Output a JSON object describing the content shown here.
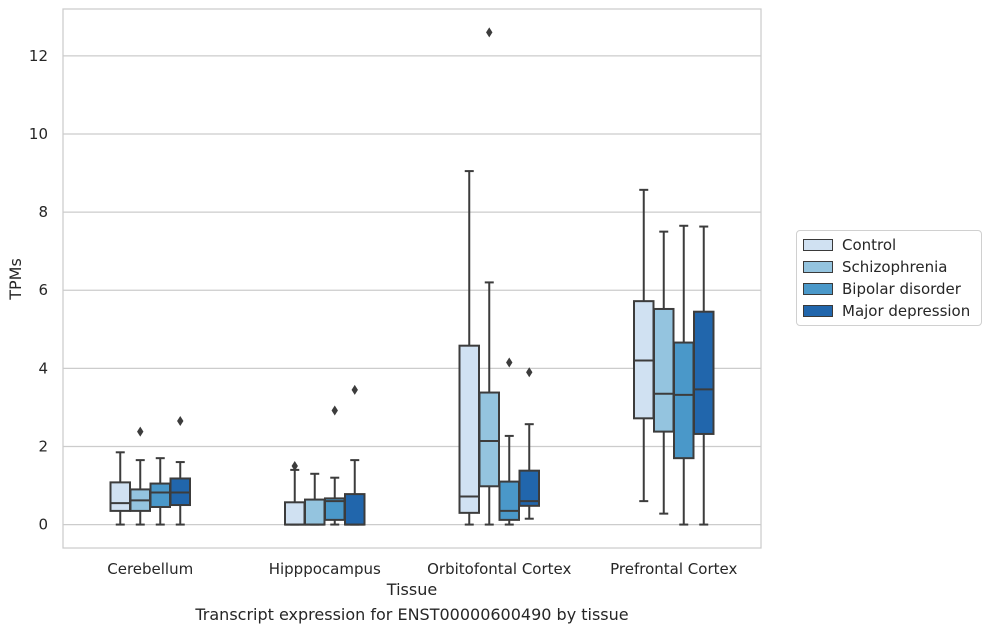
{
  "chart_data": {
    "type": "box",
    "title": "",
    "xlabel": "Tissue",
    "ylabel": "TPMs",
    "ylim": [
      -0.6,
      13.2
    ],
    "yticks": [
      0,
      2,
      4,
      6,
      8,
      10,
      12
    ],
    "grid": "horizontal",
    "legend_position": "right",
    "categories": [
      "Cerebellum",
      "Hipppocampus",
      "Orbitofontal Cortex",
      "Prefrontal Cortex"
    ],
    "series": [
      {
        "name": "Control",
        "color": "#d0e1f2",
        "boxes": [
          {
            "whislo": 0.0,
            "q1": 0.35,
            "med": 0.55,
            "q3": 1.08,
            "whishi": 1.85,
            "fliers": []
          },
          {
            "whislo": 0.0,
            "q1": 0.0,
            "med": 0.0,
            "q3": 0.57,
            "whishi": 1.4,
            "fliers": [
              1.5
            ]
          },
          {
            "whislo": 0.0,
            "q1": 0.3,
            "med": 0.72,
            "q3": 4.58,
            "whishi": 9.05,
            "fliers": []
          },
          {
            "whislo": 0.6,
            "q1": 2.72,
            "med": 4.2,
            "q3": 5.72,
            "whishi": 8.57,
            "fliers": []
          }
        ]
      },
      {
        "name": "Schizophrenia",
        "color": "#94c4df",
        "boxes": [
          {
            "whislo": 0.0,
            "q1": 0.35,
            "med": 0.62,
            "q3": 0.9,
            "whishi": 1.65,
            "fliers": [
              2.38
            ]
          },
          {
            "whislo": 0.0,
            "q1": 0.0,
            "med": 0.0,
            "q3": 0.64,
            "whishi": 1.3,
            "fliers": []
          },
          {
            "whislo": 0.0,
            "q1": 0.98,
            "med": 2.14,
            "q3": 3.38,
            "whishi": 6.2,
            "fliers": [
              12.6
            ]
          },
          {
            "whislo": 0.28,
            "q1": 2.38,
            "med": 3.35,
            "q3": 5.52,
            "whishi": 7.5,
            "fliers": []
          }
        ]
      },
      {
        "name": "Bipolar disorder",
        "color": "#4a98c9",
        "boxes": [
          {
            "whislo": 0.0,
            "q1": 0.45,
            "med": 0.82,
            "q3": 1.05,
            "whishi": 1.7,
            "fliers": []
          },
          {
            "whislo": 0.0,
            "q1": 0.12,
            "med": 0.6,
            "q3": 0.67,
            "whishi": 1.2,
            "fliers": [
              2.92
            ]
          },
          {
            "whislo": 0.0,
            "q1": 0.12,
            "med": 0.35,
            "q3": 1.1,
            "whishi": 2.27,
            "fliers": [
              4.15
            ]
          },
          {
            "whislo": 0.0,
            "q1": 1.7,
            "med": 3.32,
            "q3": 4.66,
            "whishi": 7.65,
            "fliers": []
          }
        ]
      },
      {
        "name": "Major depression",
        "color": "#2166ac",
        "boxes": [
          {
            "whislo": 0.0,
            "q1": 0.5,
            "med": 0.82,
            "q3": 1.18,
            "whishi": 1.6,
            "fliers": [
              2.65
            ]
          },
          {
            "whislo": 0.0,
            "q1": 0.0,
            "med": 0.0,
            "q3": 0.78,
            "whishi": 1.65,
            "fliers": [
              3.45
            ]
          },
          {
            "whislo": 0.15,
            "q1": 0.48,
            "med": 0.6,
            "q3": 1.38,
            "whishi": 2.57,
            "fliers": [
              3.9
            ]
          },
          {
            "whislo": 0.0,
            "q1": 2.32,
            "med": 3.46,
            "q3": 5.45,
            "whishi": 7.63,
            "fliers": []
          }
        ]
      }
    ]
  },
  "caption": "Transcript expression for ENST00000600490 by tissue"
}
